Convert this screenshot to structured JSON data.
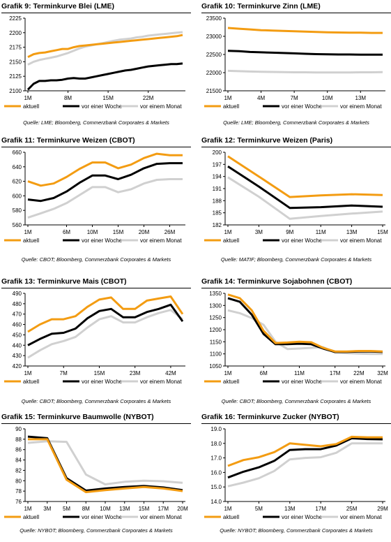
{
  "colors": {
    "aktuell": "#f39c12",
    "woche": "#000000",
    "monat": "#d0d0d0"
  },
  "legend": [
    "aktuell",
    "vor einer Woche",
    "vor einem Monat"
  ],
  "panels": [
    {
      "num": "Grafik 9:",
      "title": "Terminkurve Blei (LME)",
      "source": "Quelle: LME; Bloomberg, Commerzbank Corporates & Markets"
    },
    {
      "num": "Grafik 10:",
      "title": "Terminkurve Zinn (LME)",
      "source": "Quelle: LME; Bloomberg, Commerzbank Corporates & Markets"
    },
    {
      "num": "Grafik 11:",
      "title": "Terminkurve Weizen (CBOT)",
      "source": "Quelle: CBOT; Bloomberg, Commerzbank Corporates & Markets"
    },
    {
      "num": "Grafik 12:",
      "title": "Terminkurve Weizen (Paris)",
      "source": "Quelle: MATIF; Bloomberg, Commerzbank Corporates & Markets"
    },
    {
      "num": "Grafik 13:",
      "title": "Terminkurve Mais (CBOT)",
      "source": "Quelle: CBOT; Bloomberg, Commerzbank Corporates & Markets"
    },
    {
      "num": "Grafik 14:",
      "title": "Terminkurve Sojabohnen (CBOT)",
      "source": "Quelle: CBOT; Bloomberg, Commerzbank Corporates & Markets"
    },
    {
      "num": "Grafik 15:",
      "title": "Terminkurve Baumwolle (NYBOT)",
      "source": "Quelle: NYBOT; Bloomberg, Commerzbank Corporates & Markets"
    },
    {
      "num": "Grafik 16:",
      "title": "Terminkurve Zucker (NYBOT)",
      "source": "Quelle: NYBOT; Bloomberg, Commerzbank Corporates & Markets"
    }
  ],
  "chart_data": [
    {
      "type": "line",
      "ylim": [
        2100,
        2225
      ],
      "yticks": [
        "2100",
        "2125",
        "2150",
        "2175",
        "2200",
        "2225"
      ],
      "xticks": [
        "1M",
        "8M",
        "15M",
        "22M"
      ],
      "xtick_idx": [
        0,
        7,
        14,
        21
      ],
      "n": 28,
      "series": [
        {
          "name": "aktuell",
          "values": [
            2158,
            2163,
            2165,
            2166,
            2168,
            2170,
            2172,
            2172,
            2175,
            2177,
            2178,
            2179,
            2180,
            2181,
            2182,
            2183,
            2184,
            2185,
            2186,
            2187,
            2188,
            2189,
            2190,
            2191,
            2192,
            2193,
            2194,
            2196
          ]
        },
        {
          "name": "vor einer Woche",
          "values": [
            2102,
            2112,
            2117,
            2117,
            2118,
            2118,
            2119,
            2121,
            2122,
            2121,
            2121,
            2123,
            2125,
            2127,
            2129,
            2131,
            2133,
            2135,
            2136,
            2138,
            2140,
            2142,
            2143,
            2144,
            2145,
            2146,
            2146,
            2147
          ]
        },
        {
          "name": "vor einem Monat",
          "values": [
            2145,
            2150,
            2153,
            2155,
            2157,
            2159,
            2162,
            2165,
            2169,
            2173,
            2176,
            2178,
            2180,
            2182,
            2184,
            2186,
            2188,
            2189,
            2190,
            2192,
            2193,
            2195,
            2196,
            2197,
            2198,
            2199,
            2200,
            2201
          ]
        }
      ]
    },
    {
      "type": "line",
      "ylim": [
        21500,
        23500
      ],
      "yticks": [
        "21500",
        "22000",
        "22500",
        "23000",
        "23500"
      ],
      "xticks": [
        "1M",
        "4M",
        "7M",
        "10M",
        "13M"
      ],
      "xtick_idx": [
        0,
        3,
        6,
        9,
        12
      ],
      "n": 15,
      "series": [
        {
          "name": "aktuell",
          "values": [
            23230,
            23210,
            23190,
            23170,
            23160,
            23150,
            23140,
            23130,
            23120,
            23110,
            23105,
            23100,
            23100,
            23095,
            23095
          ]
        },
        {
          "name": "vor einer Woche",
          "values": [
            22600,
            22590,
            22570,
            22560,
            22550,
            22540,
            22530,
            22520,
            22510,
            22505,
            22500,
            22500,
            22495,
            22495,
            22495
          ]
        },
        {
          "name": "vor einem Monat",
          "values": [
            22050,
            22040,
            22030,
            22025,
            22020,
            22015,
            22010,
            22010,
            22005,
            22005,
            22005,
            22005,
            22010,
            22010,
            22015
          ]
        }
      ]
    },
    {
      "type": "line",
      "ylim": [
        560,
        660
      ],
      "yticks": [
        "560",
        "580",
        "600",
        "620",
        "640",
        "660"
      ],
      "xticks": [
        "1M",
        "6M",
        "10M",
        "15M",
        "20M",
        "26M"
      ],
      "xtick_idx": [
        0,
        3,
        5,
        7,
        9,
        11
      ],
      "n": 13,
      "series": [
        {
          "name": "aktuell",
          "values": [
            620,
            614,
            617,
            626,
            637,
            646,
            646,
            638,
            643,
            652,
            658,
            656,
            656
          ]
        },
        {
          "name": "vor einer Woche",
          "values": [
            595,
            593,
            597,
            606,
            618,
            628,
            628,
            623,
            629,
            638,
            644,
            645,
            645
          ]
        },
        {
          "name": "vor einem Monat",
          "values": [
            570,
            576,
            582,
            590,
            601,
            612,
            612,
            605,
            609,
            617,
            622,
            623,
            623
          ]
        }
      ]
    },
    {
      "type": "line",
      "ylim": [
        182,
        200
      ],
      "yticks": [
        "182",
        "185",
        "188",
        "191",
        "194",
        "197",
        "200"
      ],
      "xticks": [
        "1M",
        "3M",
        "9M",
        "11M",
        "13M",
        "15M"
      ],
      "xtick_idx": [
        0,
        1,
        2,
        3,
        4,
        5
      ],
      "n": 6,
      "series": [
        {
          "name": "aktuell",
          "values": [
            199.0,
            194.0,
            188.9,
            189.3,
            189.6,
            189.4
          ]
        },
        {
          "name": "vor einer Woche",
          "values": [
            196.5,
            191.5,
            186.2,
            186.4,
            186.8,
            186.5
          ]
        },
        {
          "name": "vor einem Monat",
          "values": [
            193.8,
            189.0,
            183.5,
            184.2,
            184.8,
            185.3
          ]
        }
      ]
    },
    {
      "type": "line",
      "ylim": [
        420,
        490
      ],
      "yticks": [
        "420",
        "430",
        "440",
        "450",
        "460",
        "470",
        "480",
        "490"
      ],
      "xticks": [
        "1M",
        "7M",
        "15M",
        "23M",
        "42M"
      ],
      "xtick_idx": [
        0,
        3,
        6,
        9,
        12
      ],
      "n": 14,
      "series": [
        {
          "name": "aktuell",
          "values": [
            453,
            460,
            465,
            465,
            468,
            477,
            484,
            486,
            475,
            475,
            483,
            485,
            487,
            470
          ]
        },
        {
          "name": "vor einer Woche",
          "values": [
            440,
            446,
            451,
            452,
            456,
            466,
            473,
            475,
            467,
            467,
            472,
            475,
            479,
            463
          ]
        },
        {
          "name": "vor einem Monat",
          "values": [
            428,
            435,
            441,
            444,
            448,
            457,
            465,
            468,
            462,
            462,
            467,
            471,
            474,
            465
          ]
        }
      ]
    },
    {
      "type": "line",
      "ylim": [
        1050,
        1350
      ],
      "yticks": [
        "1050",
        "1100",
        "1150",
        "1200",
        "1250",
        "1300",
        "1350"
      ],
      "xticks": [
        "1M",
        "6M",
        "11M",
        "17M",
        "22M",
        "32M"
      ],
      "xtick_idx": [
        0,
        3,
        6,
        9,
        11,
        13
      ],
      "n": 14,
      "series": [
        {
          "name": "aktuell",
          "values": [
            1345,
            1330,
            1280,
            1195,
            1145,
            1147,
            1150,
            1148,
            1125,
            1110,
            1110,
            1112,
            1112,
            1110
          ]
        },
        {
          "name": "vor einer Woche",
          "values": [
            1330,
            1315,
            1262,
            1182,
            1140,
            1140,
            1142,
            1140,
            1122,
            1108,
            1108,
            1110,
            1110,
            1108
          ]
        },
        {
          "name": "vor einem Monat",
          "values": [
            1280,
            1268,
            1248,
            1220,
            1150,
            1120,
            1122,
            1125,
            1128,
            1105,
            1103,
            1101,
            1100,
            1100
          ]
        }
      ]
    },
    {
      "type": "line",
      "ylim": [
        76,
        90
      ],
      "yticks": [
        "76",
        "78",
        "80",
        "82",
        "84",
        "86",
        "88",
        "90"
      ],
      "xticks": [
        "1M",
        "3M",
        "5M",
        "8M",
        "10M",
        "13M",
        "15M",
        "17M",
        "20M"
      ],
      "xtick_idx": [
        0,
        1,
        2,
        3,
        4,
        5,
        6,
        7,
        8
      ],
      "n": 9,
      "series": [
        {
          "name": "aktuell",
          "values": [
            88.0,
            88.0,
            80.2,
            77.8,
            78.2,
            78.5,
            78.8,
            78.5,
            78.0
          ]
        },
        {
          "name": "vor einer Woche",
          "values": [
            88.5,
            88.2,
            80.5,
            78.1,
            78.5,
            78.8,
            79.0,
            78.7,
            78.2
          ]
        },
        {
          "name": "vor einem Monat",
          "values": [
            87.3,
            87.6,
            87.5,
            81.2,
            79.3,
            79.8,
            80.0,
            79.9,
            79.6
          ]
        }
      ]
    },
    {
      "type": "line",
      "ylim": [
        14.0,
        19.0
      ],
      "yticks": [
        "14.0",
        "15.0",
        "16.0",
        "17.0",
        "18.0",
        "19.0"
      ],
      "xticks": [
        "1M",
        "5M",
        "13M",
        "17M",
        "25M",
        "29M"
      ],
      "xtick_idx": [
        0,
        2,
        4,
        6,
        8,
        10
      ],
      "n": 11,
      "series": [
        {
          "name": "aktuell",
          "values": [
            16.45,
            16.85,
            17.05,
            17.4,
            18.0,
            17.9,
            17.8,
            17.95,
            18.45,
            18.42,
            18.42
          ]
        },
        {
          "name": "vor einer Woche",
          "values": [
            15.65,
            16.05,
            16.35,
            16.8,
            17.55,
            17.6,
            17.6,
            17.85,
            18.35,
            18.3,
            18.28
          ]
        },
        {
          "name": "vor einem Monat",
          "values": [
            15.05,
            15.3,
            15.6,
            16.1,
            16.9,
            17.0,
            17.05,
            17.35,
            18.0,
            18.0,
            18.0
          ]
        }
      ]
    }
  ]
}
